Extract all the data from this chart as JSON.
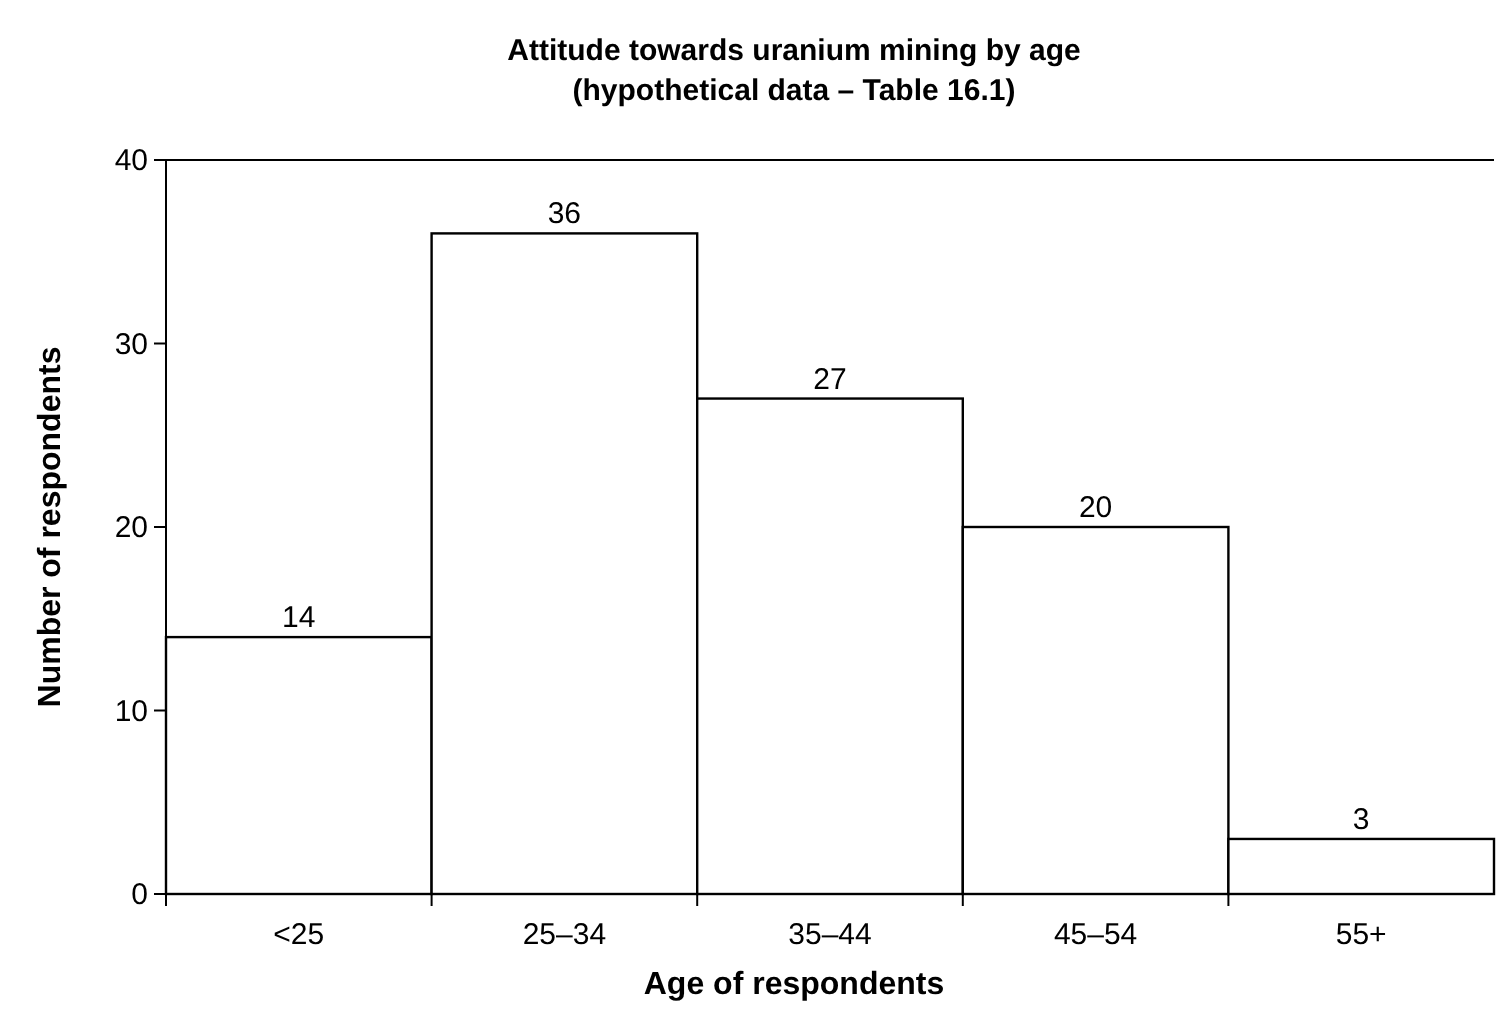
{
  "chart_data": {
    "type": "bar",
    "title": "Attitude towards uranium mining by age",
    "subtitle": "(hypothetical data – Table 16.1)",
    "xlabel": "Age of respondents",
    "ylabel": "Number of respondents",
    "categories": [
      "<25",
      "25–34",
      "35–44",
      "45–54",
      "55+"
    ],
    "values": [
      14,
      36,
      27,
      20,
      3
    ],
    "color": "#ffffff",
    "ylim": [
      0,
      40
    ],
    "yticks": [
      0,
      10,
      20,
      30,
      40
    ],
    "grid": false,
    "data_labels": true
  }
}
